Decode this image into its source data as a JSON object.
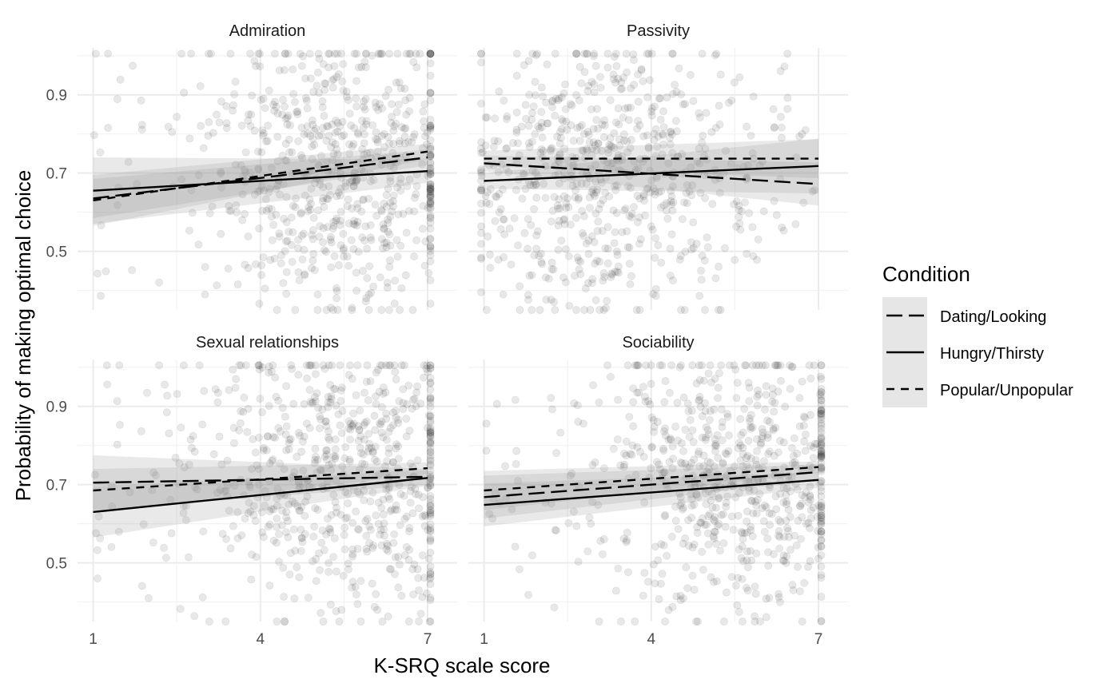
{
  "chart_data": {
    "type": "scatter",
    "xlabel": "K-SRQ scale score",
    "ylabel": "Probability of making optimal choice",
    "x_ticks": [
      "1",
      "4",
      "7"
    ],
    "x_tick_values": [
      1,
      4,
      7
    ],
    "y_ticks": [
      "0.5",
      "0.7",
      "0.9"
    ],
    "y_tick_values": [
      0.5,
      0.7,
      0.9
    ],
    "xlim": [
      0.72,
      7.53
    ],
    "ylim": [
      0.35,
      1.02
    ],
    "grid": true,
    "legend": {
      "title": "Condition",
      "placement": "right",
      "entries": [
        {
          "label": "Dating/Looking",
          "linetype": "longdash"
        },
        {
          "label": "Hungry/Thirsty",
          "linetype": "solid"
        },
        {
          "label": "Popular/Unpopular",
          "linetype": "dashed"
        }
      ]
    },
    "colors": {
      "line": "#000000",
      "ribbon": "#999999",
      "points": "#000000",
      "grid": "#ebebeb"
    },
    "panels": [
      {
        "title": "Admiration",
        "n_points": 700,
        "x_center": 5.6,
        "y_center": 0.72,
        "series": [
          {
            "name": "Dating/Looking",
            "x": [
              1,
              7
            ],
            "y": [
              0.635,
              0.74
            ],
            "se": [
              0.05,
              0.02
            ]
          },
          {
            "name": "Hungry/Thirsty",
            "x": [
              1,
              7
            ],
            "y": [
              0.655,
              0.705
            ],
            "se": [
              0.085,
              0.03
            ]
          },
          {
            "name": "Popular/Unpopular",
            "x": [
              1,
              7
            ],
            "y": [
              0.63,
              0.755
            ],
            "se": [
              0.065,
              0.02
            ]
          }
        ]
      },
      {
        "title": "Passivity",
        "n_points": 700,
        "x_center": 3.2,
        "y_center": 0.7,
        "series": [
          {
            "name": "Dating/Looking",
            "x": [
              1,
              7
            ],
            "y": [
              0.725,
              0.672
            ],
            "se": [
              0.02,
              0.055
            ]
          },
          {
            "name": "Hungry/Thirsty",
            "x": [
              1,
              7
            ],
            "y": [
              0.68,
              0.718
            ],
            "se": [
              0.02,
              0.07
            ]
          },
          {
            "name": "Popular/Unpopular",
            "x": [
              1,
              7
            ],
            "y": [
              0.737,
              0.737
            ],
            "se": [
              0.02,
              0.05
            ]
          }
        ]
      },
      {
        "title": "Sexual relationships",
        "n_points": 700,
        "x_center": 5.7,
        "y_center": 0.72,
        "series": [
          {
            "name": "Dating/Looking",
            "x": [
              1,
              7
            ],
            "y": [
              0.705,
              0.72
            ],
            "se": [
              0.07,
              0.02
            ]
          },
          {
            "name": "Hungry/Thirsty",
            "x": [
              1,
              7
            ],
            "y": [
              0.63,
              0.717
            ],
            "se": [
              0.065,
              0.02
            ]
          },
          {
            "name": "Popular/Unpopular",
            "x": [
              1,
              7
            ],
            "y": [
              0.685,
              0.742
            ],
            "se": [
              0.055,
              0.015
            ]
          }
        ]
      },
      {
        "title": "Sociability",
        "n_points": 700,
        "x_center": 5.6,
        "y_center": 0.71,
        "series": [
          {
            "name": "Dating/Looking",
            "x": [
              1,
              7
            ],
            "y": [
              0.668,
              0.732
            ],
            "se": [
              0.055,
              0.02
            ]
          },
          {
            "name": "Hungry/Thirsty",
            "x": [
              1,
              7
            ],
            "y": [
              0.648,
              0.712
            ],
            "se": [
              0.055,
              0.02
            ]
          },
          {
            "name": "Popular/Unpopular",
            "x": [
              1,
              7
            ],
            "y": [
              0.685,
              0.745
            ],
            "se": [
              0.05,
              0.015
            ]
          }
        ]
      }
    ]
  }
}
